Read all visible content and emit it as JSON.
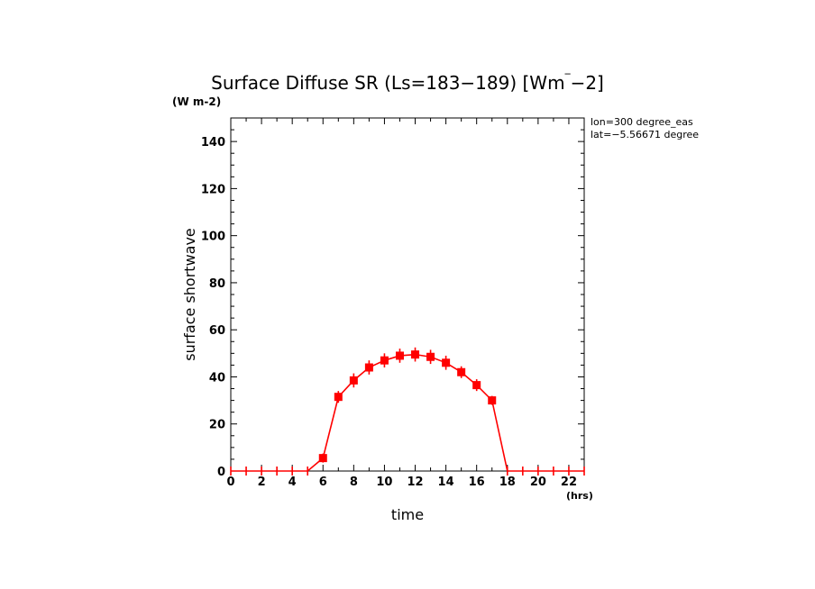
{
  "chart_data": {
    "type": "line",
    "title": "Surface Diffuse SR (Ls=183-189) [Wm^-2]",
    "title_main": "Surface Diffuse SR (Ls=183−189) [Wm",
    "title_end": "−2]",
    "y_unit_top": "(W m-2)",
    "xlabel": "time",
    "x_unit": "(hrs)",
    "ylabel": "surface shortwave",
    "annotations": [
      "lon=300 degree_eas",
      "lat=−5.56671 degree"
    ],
    "xlim": [
      0,
      23
    ],
    "ylim": [
      0,
      150
    ],
    "x_ticks": [
      0,
      2,
      4,
      6,
      8,
      10,
      12,
      14,
      16,
      18,
      20,
      22
    ],
    "y_ticks": [
      0,
      20,
      40,
      60,
      80,
      100,
      120,
      140
    ],
    "grid": false,
    "line_color": "#ff0000",
    "series": [
      {
        "x": [
          0,
          1,
          2,
          3,
          4,
          5,
          6,
          7,
          8,
          9,
          10,
          11,
          12,
          13,
          14,
          15,
          16,
          17,
          18,
          19,
          20,
          21,
          22,
          23
        ],
        "values": [
          0,
          0,
          0,
          0,
          0,
          0,
          5.5,
          31.5,
          38.5,
          44,
          47,
          49,
          49.5,
          48.5,
          46,
          42,
          36.5,
          30,
          0,
          0,
          0,
          0,
          0,
          0
        ],
        "error": [
          0,
          0,
          0,
          0,
          0,
          0,
          0,
          2.5,
          3,
          3,
          3,
          3,
          3,
          3,
          3,
          2.5,
          2.5,
          0,
          0,
          0,
          0,
          0,
          0,
          0
        ]
      }
    ]
  }
}
